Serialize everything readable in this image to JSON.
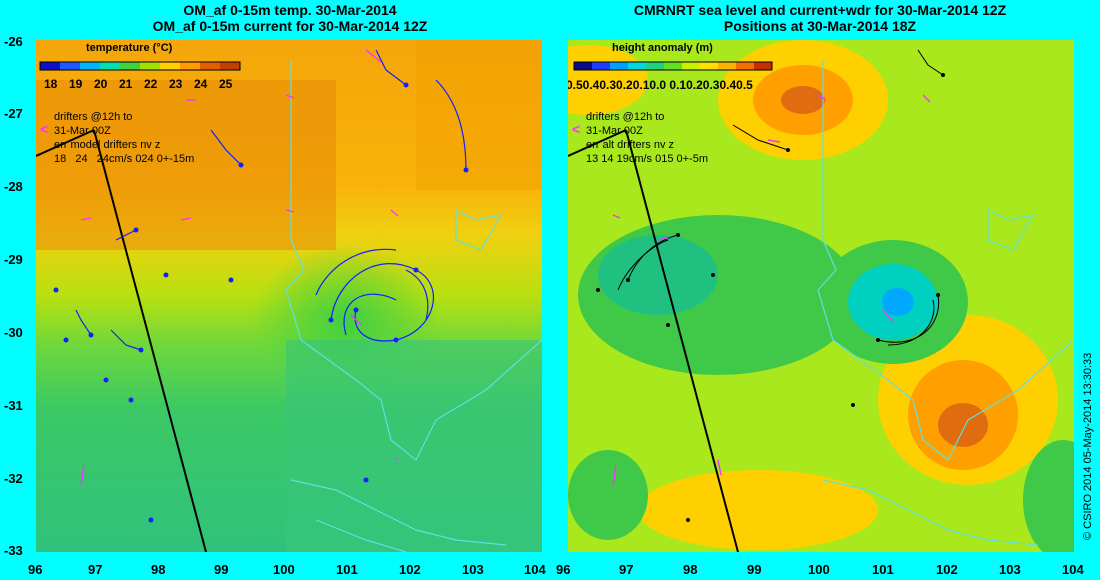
{
  "left_panel": {
    "title_line1": "OM_af 0-15m temp. 30-Mar-2014",
    "title_line2": "OM_af 0-15m current for 30-Mar-2014 12Z",
    "colorbar_label": "temperature (°C)",
    "colorbar_ticks": [
      "18",
      "19",
      "20",
      "21",
      "22",
      "23",
      "24",
      "25"
    ],
    "colors": [
      "#1010c8",
      "#1e5aff",
      "#00b4ff",
      "#00e0b0",
      "#40d040",
      "#a0e000",
      "#ffd000",
      "#ff9a00",
      "#e06000",
      "#c04000"
    ],
    "legend_lines": [
      "drifters @12h to",
      "31-Mar 00Z",
      "err model drifters nv z",
      "18   24   24cm/s 024 0+-15m"
    ]
  },
  "right_panel": {
    "title_line1": "CMRNRT sea level and current+wdr for 30-Mar-2014 12Z",
    "title_line2": "Positions at 30-Mar-2014 18Z",
    "colorbar_label": "height anomaly (m)",
    "colorbar_ticks_text": "-0.50.40.30.20.10.0 0.10.20.30.40.5",
    "colors": [
      "#0a0a8c",
      "#1e3cff",
      "#00a0ff",
      "#00d8e0",
      "#20d080",
      "#60e020",
      "#c8f000",
      "#ffe000",
      "#ffb000",
      "#f07000",
      "#c03000"
    ],
    "legend_lines": [
      "drifters @12h to",
      "31-Mar 00Z",
      "err alt drifters nv z",
      "13 14 19cm/s 015 0+-5m"
    ]
  },
  "x_ticks": [
    "96",
    "97",
    "98",
    "99",
    "100",
    "101",
    "102",
    "103",
    "104"
  ],
  "y_ticks": [
    "-26",
    "-27",
    "-28",
    "-29",
    "-30",
    "-31",
    "-32",
    "-33"
  ],
  "credit": "© CSIRO 2014   05-May-2014 13:30:33"
}
